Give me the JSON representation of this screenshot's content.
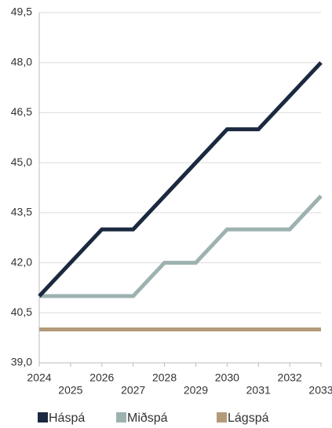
{
  "chart_data": {
    "type": "line",
    "x": [
      2024,
      2025,
      2026,
      2027,
      2028,
      2029,
      2030,
      2031,
      2032,
      2033
    ],
    "xlim": [
      2024,
      2033
    ],
    "xticks": [
      2024,
      2025,
      2026,
      2027,
      2028,
      2029,
      2030,
      2031,
      2032,
      2033
    ],
    "ylim": [
      39,
      49.5
    ],
    "yticks": [
      {
        "value": 39,
        "label": "39,0"
      },
      {
        "value": 40.5,
        "label": "40,5"
      },
      {
        "value": 42,
        "label": "42,0"
      },
      {
        "value": 43.5,
        "label": "43,5"
      },
      {
        "value": 45,
        "label": "45,0"
      },
      {
        "value": 46.5,
        "label": "46,5"
      },
      {
        "value": 48,
        "label": "48,0"
      },
      {
        "value": 49.5,
        "label": "49,5"
      }
    ],
    "grid": true,
    "legend": "bottom",
    "series": [
      {
        "name": "Háspá",
        "color": "#1b2940",
        "values": [
          41,
          42,
          43,
          43,
          44,
          45,
          46,
          46,
          47,
          48
        ]
      },
      {
        "name": "Miðspá",
        "color": "#9db2b0",
        "values": [
          41,
          41,
          41,
          41,
          42,
          42,
          43,
          43,
          43,
          44
        ]
      },
      {
        "name": "Lágspá",
        "color": "#b39b7a",
        "values": [
          40,
          40,
          40,
          40,
          40,
          40,
          40,
          40,
          40,
          40
        ]
      }
    ]
  }
}
